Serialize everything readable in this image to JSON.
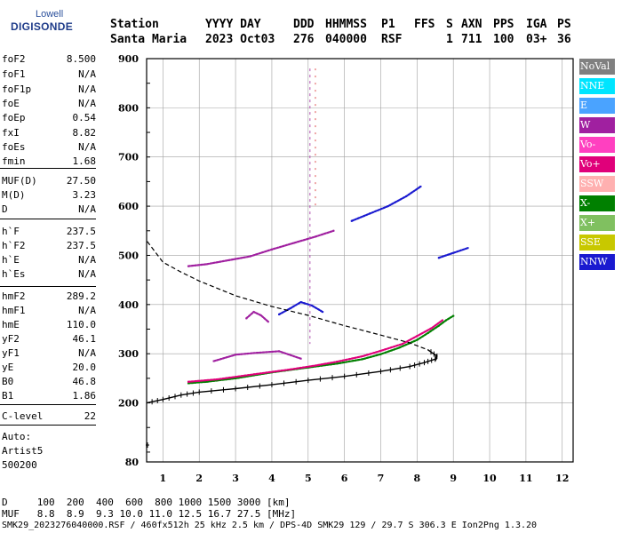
{
  "logo": {
    "line1": "Lowell",
    "line2": "DIGISONDE"
  },
  "header": {
    "labels": [
      "Station",
      "YYYY DAY",
      "DDD",
      "HHMMSS",
      "P1",
      "FFS",
      "S",
      "AXN",
      "PPS",
      "IGA",
      "PS"
    ],
    "values": [
      "Santa Maria",
      "2023 Oct03",
      "276",
      "040000",
      "RSF",
      "1",
      "711",
      "100",
      "03+",
      "36"
    ]
  },
  "parameters": [
    {
      "name": "foF2",
      "value": "8.500"
    },
    {
      "name": "foF1",
      "value": "N/A"
    },
    {
      "name": "foF1p",
      "value": "N/A"
    },
    {
      "name": "foE",
      "value": "N/A"
    },
    {
      "name": "foEp",
      "value": "0.54"
    },
    {
      "name": "fxI",
      "value": "8.82"
    },
    {
      "name": "foEs",
      "value": "N/A"
    },
    {
      "name": "fmin",
      "value": "1.68"
    },
    {
      "name": "MUF(D)",
      "value": "27.50"
    },
    {
      "name": "M(D)",
      "value": "3.23"
    },
    {
      "name": "D",
      "value": "N/A"
    },
    {
      "name": "h`F",
      "value": "237.5"
    },
    {
      "name": "h`F2",
      "value": "237.5"
    },
    {
      "name": "h`E",
      "value": "N/A"
    },
    {
      "name": "h`Es",
      "value": "N/A"
    },
    {
      "name": "hmF2",
      "value": "289.2"
    },
    {
      "name": "hmF1",
      "value": "N/A"
    },
    {
      "name": "hmE",
      "value": "110.0"
    },
    {
      "name": "yF2",
      "value": "46.1"
    },
    {
      "name": "yF1",
      "value": "N/A"
    },
    {
      "name": "yE",
      "value": "20.0"
    },
    {
      "name": "B0",
      "value": "46.8"
    },
    {
      "name": "B1",
      "value": "1.86"
    },
    {
      "name": "C-level",
      "value": "22"
    }
  ],
  "autoscaling": {
    "line1": "Auto:",
    "line2": "Artist5",
    "line3": "500200"
  },
  "legend": [
    {
      "label": "NoVal",
      "color": "#808080",
      "text": "#ffffff"
    },
    {
      "label": "NNE",
      "color": "#00e5ff",
      "text": "#ffffff"
    },
    {
      "label": "E",
      "color": "#4aa3ff",
      "text": "#ffffff"
    },
    {
      "label": "W",
      "color": "#a020a0",
      "text": "#ffffff"
    },
    {
      "label": "Vo-",
      "color": "#ff40c0",
      "text": "#ffffff"
    },
    {
      "label": "Vo+",
      "color": "#e0007a",
      "text": "#ffffff"
    },
    {
      "label": "SSW",
      "color": "#ffb0b0",
      "text": "#ffffff"
    },
    {
      "label": "X-",
      "color": "#008000",
      "text": "#ffffff"
    },
    {
      "label": "X+",
      "color": "#80c060",
      "text": "#ffffff"
    },
    {
      "label": "SSE",
      "color": "#c8c800",
      "text": "#ffffff"
    },
    {
      "label": "NNW",
      "color": "#1a1ad0",
      "text": "#ffffff"
    }
  ],
  "footer": {
    "d_line": "D     100  200  400  600  800 1000 1500 3000 [km]",
    "muf_line": "MUF   8.8  8.9  9.3 10.0 11.0 12.5 16.7 27.5 [MHz]",
    "file_line": "SMK29_2023276040000.RSF / 460fx512h 25 kHz 2.5 km / DPS-4D SMK29 129 / 29.7 S 306.3 E Ion2Png 1.3.20"
  },
  "colors": {
    "profile": "#000000",
    "grid": "#a0a0a0",
    "trace_main": "#c050c0"
  },
  "chart_data": {
    "type": "scatter",
    "xlim": [
      0.55,
      12.3
    ],
    "ylim": [
      80,
      900
    ],
    "xticks": [
      "1",
      "2",
      "3",
      "4",
      "5",
      "6",
      "7",
      "8",
      "9",
      "10",
      "11",
      "12"
    ],
    "yticks": [
      "80",
      "200",
      "300",
      "400",
      "500",
      "600",
      "700",
      "800",
      "900"
    ],
    "ytick_values": [
      80,
      200,
      300,
      400,
      500,
      600,
      700,
      800,
      900
    ],
    "grid": true,
    "legend_position": "right",
    "profile_curve": {
      "x": [
        0.55,
        1.0,
        1.5,
        2.0,
        3.0,
        4.0,
        5.0,
        6.0,
        7.0,
        7.8,
        8.2,
        8.5,
        8.55,
        8.3,
        7.8,
        7.0,
        6.0,
        5.0,
        4.0,
        3.0,
        2.0,
        1.5,
        1.0,
        0.55
      ],
      "y": [
        200,
        207,
        216,
        222,
        229,
        237,
        246,
        254,
        264,
        274,
        282,
        289,
        295,
        308,
        322,
        338,
        357,
        378,
        396,
        418,
        448,
        466,
        486,
        530
      ]
    },
    "series": [
      {
        "label": "X- (extraordinary)",
        "x": [
          1.7,
          2.2,
          3.0,
          4.0,
          5.0,
          5.8,
          6.5,
          7.0,
          7.5,
          8.0,
          8.3,
          8.6,
          8.8,
          9.0
        ],
        "y": [
          240,
          243,
          250,
          262,
          272,
          280,
          289,
          299,
          312,
          328,
          342,
          357,
          368,
          377
        ]
      },
      {
        "label": "Vo+ (ordinary)",
        "x": [
          1.7,
          2.5,
          3.5,
          4.5,
          5.2,
          5.8,
          6.5,
          7.0,
          7.6,
          8.0,
          8.4,
          8.7
        ],
        "y": [
          243,
          248,
          258,
          268,
          276,
          284,
          295,
          306,
          320,
          336,
          352,
          368
        ]
      },
      {
        "label": "W (second hop)",
        "x": [
          1.7,
          2.2,
          2.8,
          3.4,
          4.0,
          4.6,
          5.2,
          5.7
        ],
        "y": [
          478,
          482,
          490,
          498,
          512,
          525,
          538,
          550
        ]
      },
      {
        "label": "NNW (second hop upper)",
        "x": [
          6.2,
          6.7,
          7.2,
          7.7,
          8.1
        ],
        "y": [
          570,
          585,
          600,
          620,
          640
        ]
      },
      {
        "label": "W (echo cluster 3.5 MHz)",
        "x": [
          3.3,
          3.5,
          3.7,
          3.9
        ],
        "y": [
          372,
          385,
          378,
          365
        ]
      },
      {
        "label": "NNW (echo cluster 4.7 MHz)",
        "x": [
          4.2,
          4.5,
          4.8,
          5.1,
          5.4
        ],
        "y": [
          380,
          392,
          405,
          398,
          385
        ]
      },
      {
        "label": "W (low layer 2.5-5 MHz)",
        "x": [
          2.4,
          3.0,
          3.6,
          4.2,
          4.8
        ],
        "y": [
          285,
          298,
          302,
          305,
          290
        ]
      },
      {
        "label": "NNW (scatter 8.6 MHz)",
        "x": [
          8.6,
          9.0,
          9.4
        ],
        "y": [
          495,
          505,
          515
        ]
      }
    ]
  }
}
